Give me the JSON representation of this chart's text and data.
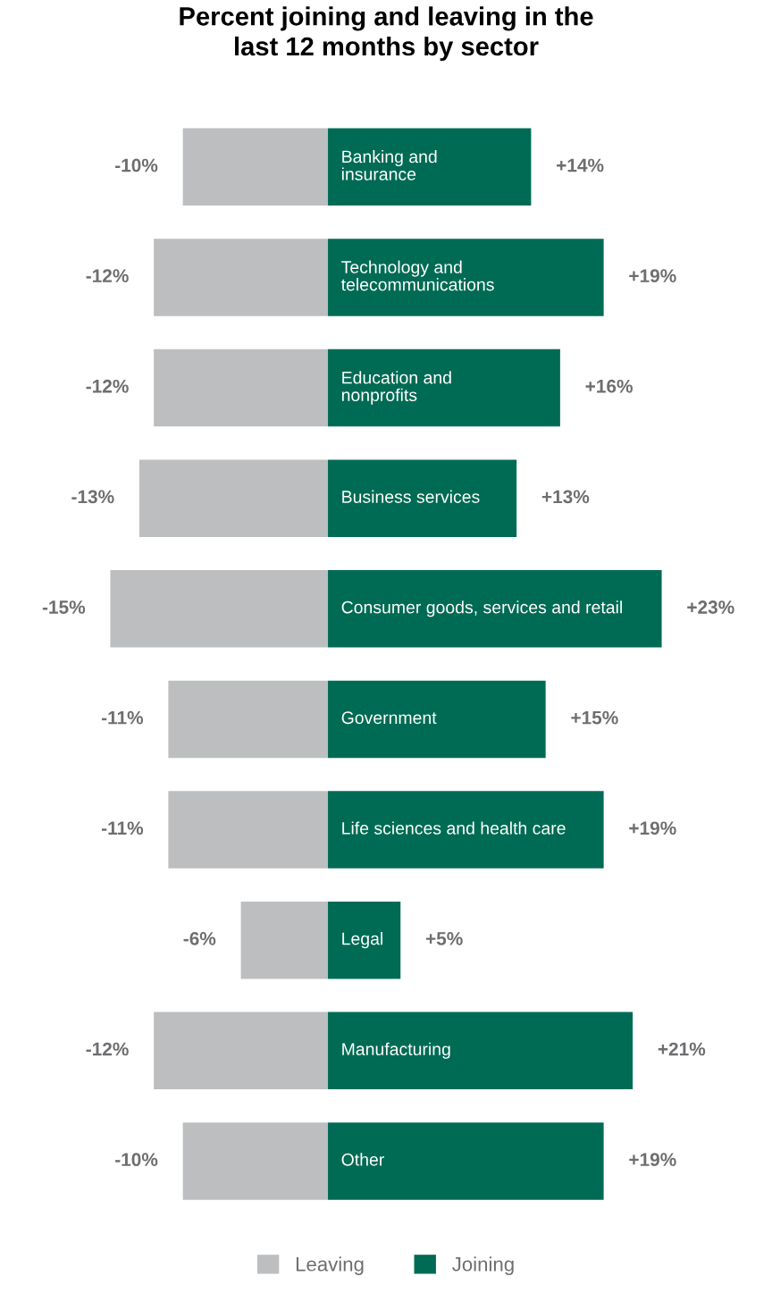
{
  "chart_data": {
    "type": "bar",
    "orientation": "horizontal",
    "title": "Percent joining and leaving in the\nlast 12 months by sector",
    "categories": [
      "Banking and\ninsurance",
      "Technology and\ntelecommunications",
      "Education and\nnonprofits",
      "Business services",
      "Consumer goods, services and retail",
      "Government",
      "Life sciences and health care",
      "Legal",
      "Manufacturing",
      "Other"
    ],
    "series": [
      {
        "name": "Leaving",
        "color": "#bdbebf",
        "values": [
          -10,
          -12,
          -12,
          -13,
          -15,
          -11,
          -11,
          -6,
          -12,
          -10
        ],
        "value_labels": [
          "-10%",
          "-12%",
          "-12%",
          "-13%",
          "-15%",
          "-11%",
          "-11%",
          "-6%",
          "-12%",
          "-10%"
        ]
      },
      {
        "name": "Joining",
        "color": "#006b54",
        "values": [
          14,
          19,
          16,
          13,
          23,
          15,
          19,
          5,
          21,
          19
        ],
        "value_labels": [
          "+14%",
          "+19%",
          "+16%",
          "+13%",
          "+23%",
          "+15%",
          "+19%",
          "+5%",
          "+21%",
          "+19%"
        ]
      }
    ],
    "stacked": true,
    "legend": "bottom"
  }
}
